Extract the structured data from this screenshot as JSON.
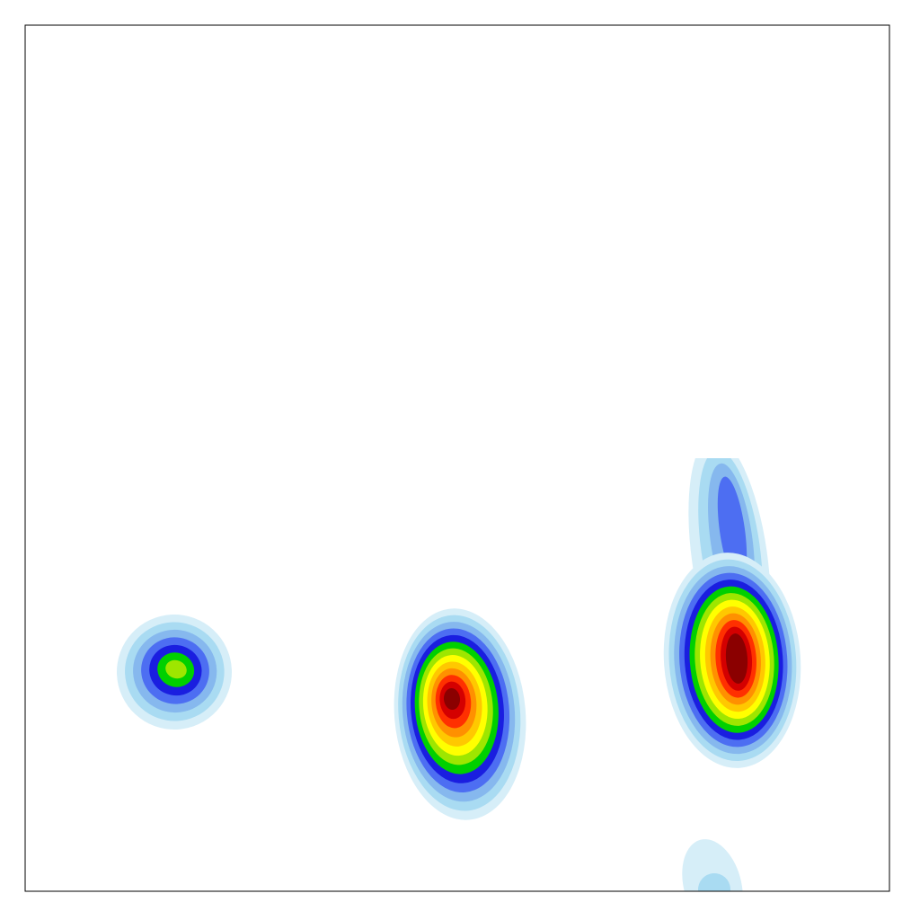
{
  "chart_data": {
    "type": "contour",
    "colors": [
      "#d6eef8",
      "#a9dbf2",
      "#86b8ee",
      "#4d6ef2",
      "#1a1ee0",
      "#00d000",
      "#9ee600",
      "#ffff00",
      "#ffc800",
      "#ff9000",
      "#ff3000",
      "#d40000",
      "#8b0000"
    ]
  }
}
